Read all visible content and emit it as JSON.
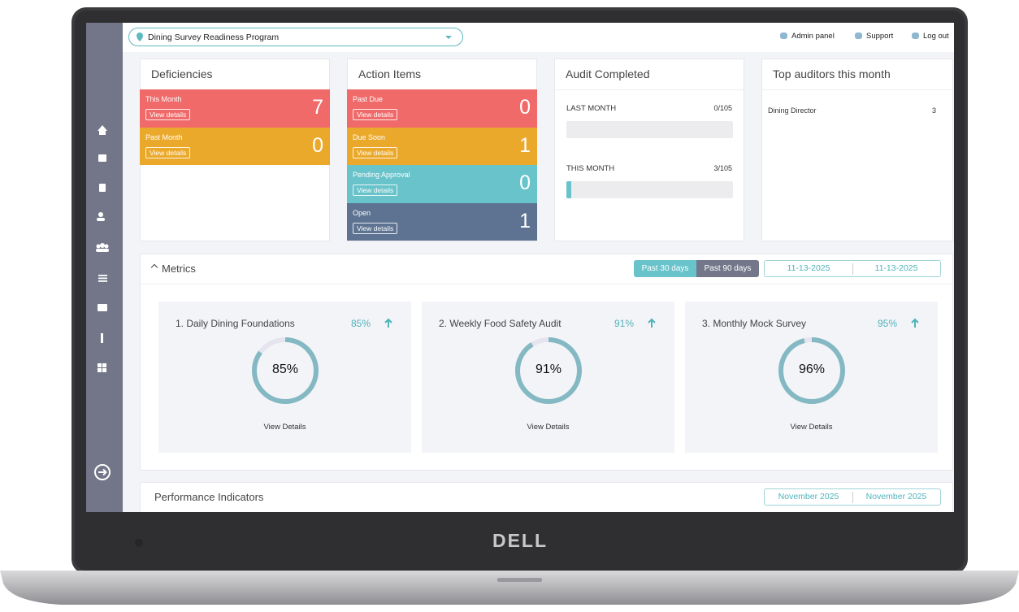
{
  "header": {
    "program": "Dining Survey Readiness Program",
    "links": [
      "Admin panel",
      "Support",
      "Log out"
    ]
  },
  "deficiencies": {
    "title": "Deficiencies",
    "rows": [
      {
        "label": "This Month",
        "button": "View details",
        "count": 7
      },
      {
        "label": "Past Month",
        "button": "View details",
        "count": 0
      }
    ]
  },
  "action_items": {
    "title": "Action Items",
    "rows": [
      {
        "label": "Past Due",
        "button": "View details",
        "count": 0
      },
      {
        "label": "Due Soon",
        "button": "View details",
        "count": 1
      },
      {
        "label": "Pending Approval",
        "button": "View details",
        "count": 0
      },
      {
        "label": "Open",
        "button": "View details",
        "count": 1
      }
    ]
  },
  "audit": {
    "title": "Audit Completed",
    "rows": [
      {
        "label": "LAST MONTH",
        "progress": "0/105",
        "done": 0,
        "total": 105
      },
      {
        "label": "THIS MONTH",
        "progress": "3/105",
        "done": 3,
        "total": 105
      }
    ]
  },
  "top_auditors": {
    "title": "Top auditors this month",
    "rows": [
      {
        "name": "Dining Director",
        "count": 3
      }
    ]
  },
  "metrics": {
    "title": "Metrics",
    "ranges": [
      "Past 30 days",
      "Past 90 days"
    ],
    "dates": [
      "11-13-2025",
      "11-13-2025"
    ],
    "cards": [
      {
        "title": "1. Daily Dining Foundations",
        "trend": "85%",
        "score": {
          "value": 85,
          "label": "85%"
        },
        "link": "View Details"
      },
      {
        "title": "2. Weekly Food Safety Audit",
        "trend": "91%",
        "score": {
          "value": 91,
          "label": "91%"
        },
        "link": "View Details"
      },
      {
        "title": "3. Monthly Mock Survey",
        "trend": "95%",
        "score": {
          "value": 96,
          "label": "96%"
        },
        "link": "View Details"
      }
    ]
  },
  "performance": {
    "title": "Performance Indicators",
    "dates": [
      "November 2025",
      "November 2025"
    ]
  },
  "brand": "DELL"
}
